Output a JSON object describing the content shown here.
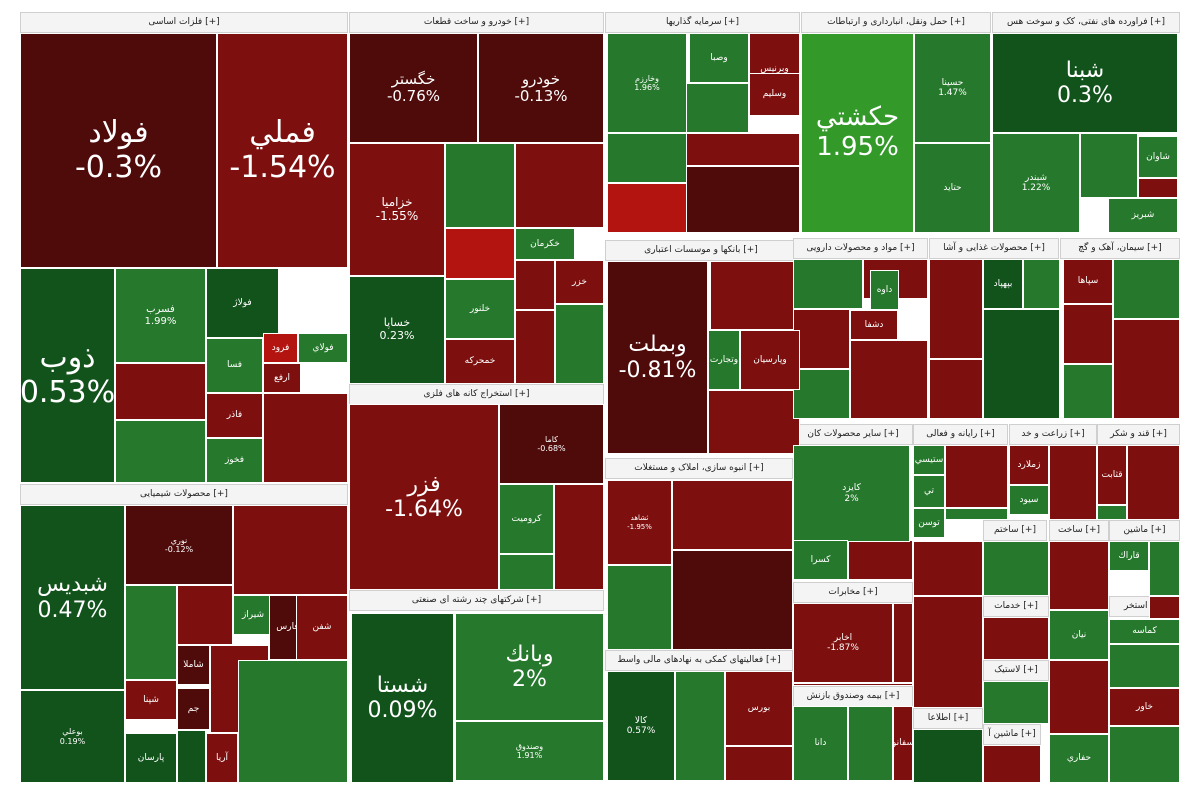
{
  "chart_data": {
    "type": "treemap",
    "palette": {
      "dark_red": "#4f0a0a",
      "red": "#7d0f0f",
      "bright_red": "#b3140f",
      "dark_green": "#12531c",
      "green": "#26792c",
      "bright_green": "#339a2a"
    },
    "sectors": [
      {
        "name": "فلزات اساسی [+]"
      },
      {
        "name": "خودرو و ساخت قطعات [+]"
      },
      {
        "name": "سرمایه گذاریها [+]"
      },
      {
        "name": "حمل ونقل، انبارداری و ارتباطات [+]"
      },
      {
        "name": "فراورده های نفتی، کک و سوخت هس [+]"
      },
      {
        "name": "محصولات شیمیایی [+]"
      },
      {
        "name": "استخراج کانه های فلزی [+]"
      },
      {
        "name": "بانکها و موسسات اعتباری [+]"
      },
      {
        "name": "مواد و محصولات دارویی [+]"
      },
      {
        "name": "محصولات غذایی و آشا [+]"
      },
      {
        "name": "سیمان، آهک و گچ [+]"
      },
      {
        "name": "انبوه سازی، املاک و مستغلات [+]"
      },
      {
        "name": "شرکتهای چند رشته ای صنعتی [+]"
      },
      {
        "name": "سایر محصولات کان [+]"
      },
      {
        "name": "رایانه و فعالی [+]"
      },
      {
        "name": "زراعت و خد [+]"
      },
      {
        "name": "قند و شکر [+]"
      },
      {
        "name": "مخابرات [+]"
      },
      {
        "name": "فعالیتهای کمکی به نهادهای مالی واسط [+]"
      },
      {
        "name": "بیمه وصندوق بازنش [+]"
      },
      {
        "name": "اطلاعا [+]"
      },
      {
        "name": "ماشین آ [+]"
      },
      {
        "name": "خدمات [+]"
      },
      {
        "name": "لاستیک [+]"
      },
      {
        "name": "ساخت [+]"
      },
      {
        "name": "ماشین [+]"
      },
      {
        "name": "ساختم [+]"
      },
      {
        "name": "استخر [+]"
      }
    ],
    "stocks": [
      {
        "symbol": "فولاد",
        "change": "-0.3%",
        "color": "dark_red"
      },
      {
        "symbol": "فملي",
        "change": "-1.54%",
        "color": "red"
      },
      {
        "symbol": "ذوب",
        "change": "0.53%",
        "color": "dark_green"
      },
      {
        "symbol": "فسرب",
        "change": "1.99%",
        "color": "green"
      },
      {
        "symbol": "فولاژ",
        "change": "",
        "color": "dark_green"
      },
      {
        "symbol": "فرود",
        "change": "",
        "color": "bright_red"
      },
      {
        "symbol": "فولاي",
        "change": "",
        "color": "green"
      },
      {
        "symbol": "فسا",
        "change": "",
        "color": "green"
      },
      {
        "symbol": "ارفع",
        "change": "",
        "color": "red"
      },
      {
        "symbol": "فاذر",
        "change": "",
        "color": "red"
      },
      {
        "symbol": "فخوز",
        "change": "",
        "color": "green"
      },
      {
        "symbol": "خگستر",
        "change": "-0.76%",
        "color": "dark_red"
      },
      {
        "symbol": "خودرو",
        "change": "-0.13%",
        "color": "dark_red"
      },
      {
        "symbol": "خزاميا",
        "change": "-1.55%",
        "color": "red"
      },
      {
        "symbol": "خساپا",
        "change": "0.23%",
        "color": "dark_green"
      },
      {
        "symbol": "خكرمان",
        "change": "",
        "color": "green"
      },
      {
        "symbol": "خزر",
        "change": "",
        "color": "red"
      },
      {
        "symbol": "خلنور",
        "change": "",
        "color": "green"
      },
      {
        "symbol": "خمحركه",
        "change": "",
        "color": "red"
      },
      {
        "symbol": "وخارزم",
        "change": "1.96%",
        "color": "green"
      },
      {
        "symbol": "وصبا",
        "change": "",
        "color": "green"
      },
      {
        "symbol": "وبرنیس",
        "change": "",
        "color": "red"
      },
      {
        "symbol": "وسلیم",
        "change": "",
        "color": "red"
      },
      {
        "symbol": "حكشتي",
        "change": "1.95%",
        "color": "bright_green"
      },
      {
        "symbol": "حسينا",
        "change": "1.47%",
        "color": "green"
      },
      {
        "symbol": "حتايد",
        "change": "",
        "color": "green"
      },
      {
        "symbol": "شبنا",
        "change": "0.3%",
        "color": "dark_green"
      },
      {
        "symbol": "شبندر",
        "change": "1.22%",
        "color": "green"
      },
      {
        "symbol": "شاوان",
        "change": "",
        "color": "green"
      },
      {
        "symbol": "شبريز",
        "change": "",
        "color": "green"
      },
      {
        "symbol": "شبديس",
        "change": "0.47%",
        "color": "dark_green"
      },
      {
        "symbol": "بوعلي",
        "change": "0.19%",
        "color": "dark_green"
      },
      {
        "symbol": "نوري",
        "change": "-0.12%",
        "color": "dark_red"
      },
      {
        "symbol": "شيراز",
        "change": "",
        "color": "green"
      },
      {
        "symbol": "فارس",
        "change": "",
        "color": "dark_red"
      },
      {
        "symbol": "شفن",
        "change": "",
        "color": "red"
      },
      {
        "symbol": "شاملا",
        "change": "",
        "color": "dark_red"
      },
      {
        "symbol": "جم",
        "change": "",
        "color": "dark_red"
      },
      {
        "symbol": "شپنا",
        "change": "",
        "color": "red"
      },
      {
        "symbol": "پارسان",
        "change": "",
        "color": "dark_green"
      },
      {
        "symbol": "آريا",
        "change": "",
        "color": "red"
      },
      {
        "symbol": "فزر",
        "change": "-1.64%",
        "color": "red"
      },
      {
        "symbol": "كاما",
        "change": "-0.68%",
        "color": "dark_red"
      },
      {
        "symbol": "كروميت",
        "change": "",
        "color": "green"
      },
      {
        "symbol": "وبملت",
        "change": "-0.81%",
        "color": "dark_red"
      },
      {
        "symbol": "وتجارت",
        "change": "",
        "color": "green"
      },
      {
        "symbol": "وپارسيان",
        "change": "",
        "color": "red"
      },
      {
        "symbol": "ثشاهد",
        "change": "-1.95%",
        "color": "red"
      },
      {
        "symbol": "شستا",
        "change": "0.09%",
        "color": "dark_green"
      },
      {
        "symbol": "وبانك",
        "change": "2%",
        "color": "green"
      },
      {
        "symbol": "وصندوق",
        "change": "1.91%",
        "color": "green"
      },
      {
        "symbol": "كالا",
        "change": "0.57%",
        "color": "dark_green"
      },
      {
        "symbol": "بورس",
        "change": "",
        "color": "red"
      },
      {
        "symbol": "كايزد",
        "change": "2%",
        "color": "green"
      },
      {
        "symbol": "كسرا",
        "change": "",
        "color": "green"
      },
      {
        "symbol": "اخابر",
        "change": "-1.87%",
        "color": "red"
      },
      {
        "symbol": "دانا",
        "change": "",
        "color": "green"
      },
      {
        "symbol": "سفانو",
        "change": "",
        "color": "red"
      },
      {
        "symbol": "سپاها",
        "change": "",
        "color": "red"
      },
      {
        "symbol": "ستيسي",
        "change": "",
        "color": "green"
      },
      {
        "symbol": "زملارد",
        "change": "",
        "color": "red"
      },
      {
        "symbol": "سيود",
        "change": "",
        "color": "green"
      },
      {
        "symbol": "قثابت",
        "change": "",
        "color": "red"
      },
      {
        "symbol": "قاراك",
        "change": "",
        "color": "green"
      },
      {
        "symbol": "كماسه",
        "change": "",
        "color": "green"
      },
      {
        "symbol": "نيان",
        "change": "",
        "color": "green"
      },
      {
        "symbol": "خاور",
        "change": "",
        "color": "red"
      },
      {
        "symbol": "حفاري",
        "change": "",
        "color": "green"
      },
      {
        "symbol": "بپهپاد",
        "change": "",
        "color": "dark_green"
      },
      {
        "symbol": "داوه",
        "change": "",
        "color": "green"
      },
      {
        "symbol": "دشفا",
        "change": "",
        "color": "red"
      },
      {
        "symbol": "تي",
        "change": "",
        "color": "green"
      },
      {
        "symbol": "توسن",
        "change": "",
        "color": "green"
      }
    ]
  }
}
